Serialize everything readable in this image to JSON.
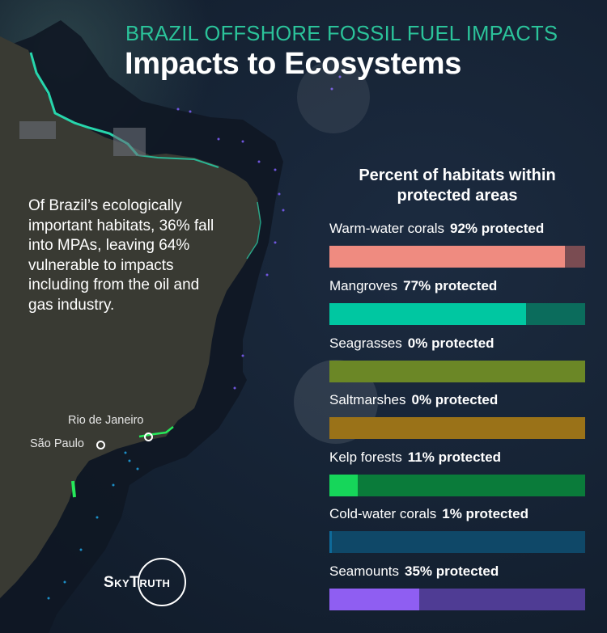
{
  "header": {
    "subtitle": "BRAZIL OFFSHORE FOSSIL FUEL IMPACTS",
    "title": "Impacts to Ecosystems"
  },
  "intro_text": "Of Brazil’s ecologically important habitats, 36% fall into MPAs, leaving 64% vulnerable to impacts including from the oil and gas industry.",
  "map": {
    "cities": [
      {
        "name": "Rio de Janeiro"
      },
      {
        "name": "São Paulo"
      }
    ]
  },
  "logo": {
    "text": "SkyTruth"
  },
  "chart_data": {
    "type": "bar",
    "orientation": "horizontal",
    "title": "Percent of habitats within protected areas",
    "xlabel": "",
    "ylabel": "",
    "xlim": [
      0,
      100
    ],
    "grid": false,
    "legend": "none",
    "categories": [
      "Warm-water corals",
      "Mangroves",
      "Seagrasses",
      "Saltmarshes",
      "Kelp forests",
      "Cold-water corals",
      "Seamounts"
    ],
    "values": [
      92,
      77,
      0,
      0,
      11,
      1,
      35
    ],
    "value_labels": [
      "92% protected",
      "77% protected",
      "0% protected",
      "0% protected",
      "11% protected",
      "1% protected",
      "35% protected"
    ],
    "colors": {
      "fill": [
        "#ef8b80",
        "#00c7a1",
        "#7a9a2a",
        "#b98a1e",
        "#16d65a",
        "#0e6a9a",
        "#8f5ef2"
      ],
      "track": [
        "#7a4c52",
        "#0b6c5c",
        "#6b8726",
        "#9a7218",
        "#0a7b3a",
        "#0f4868",
        "#4f3c94"
      ]
    }
  },
  "colors": {
    "accent": "#2bc39a",
    "background": "#152233"
  }
}
